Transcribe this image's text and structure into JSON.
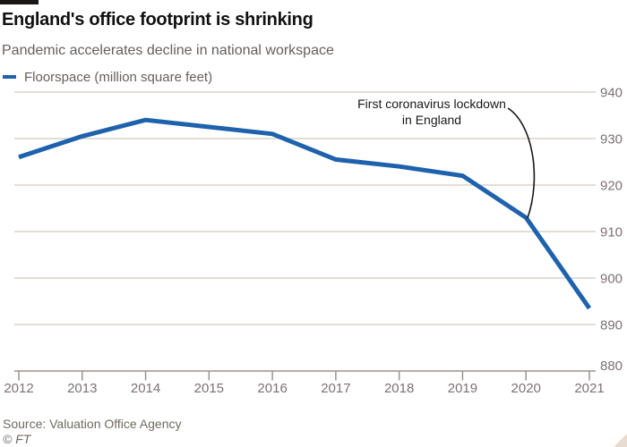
{
  "header": {
    "title": "England's office footprint is shrinking",
    "subtitle": "Pandemic accelerates decline in national workspace"
  },
  "legend": {
    "label": "Floorspace (million square feet)",
    "swatch_color": "#1e62ad"
  },
  "annotation": {
    "line1": "First coronavirus lockdown",
    "line2": "in England"
  },
  "footer": {
    "source": "Source: Valuation Office Agency",
    "copyright": "© FT"
  },
  "colors": {
    "background": "#ffffff",
    "brand_bar": "#1a1817",
    "title_text": "#111111",
    "muted_text": "#66605c",
    "tick_label": "#7d7173",
    "gridline": "#d9d2c9",
    "axis": "#9b948c",
    "line": "#1e62ad",
    "annotation": "#1a1817",
    "corner_triangle": "#e8dcd0"
  },
  "chart_data": {
    "type": "line",
    "title": "England's office footprint is shrinking",
    "subtitle": "Pandemic accelerates decline in national workspace",
    "x": [
      2012,
      2013,
      2014,
      2015,
      2016,
      2017,
      2018,
      2019,
      2020,
      2021
    ],
    "series": [
      {
        "name": "Floorspace (million square feet)",
        "values": [
          926,
          930.5,
          934,
          932.5,
          931,
          925.5,
          924,
          922,
          913,
          893.5
        ]
      }
    ],
    "xlabel": "",
    "ylabel": "",
    "ylim": [
      880,
      940
    ],
    "yticks": [
      880,
      890,
      900,
      910,
      920,
      930,
      940
    ],
    "grid": "horizontal",
    "legend_position": "top-left",
    "annotation": {
      "text": "First coronavirus lockdown in England",
      "target_year": 2020,
      "target_value": 913
    }
  }
}
